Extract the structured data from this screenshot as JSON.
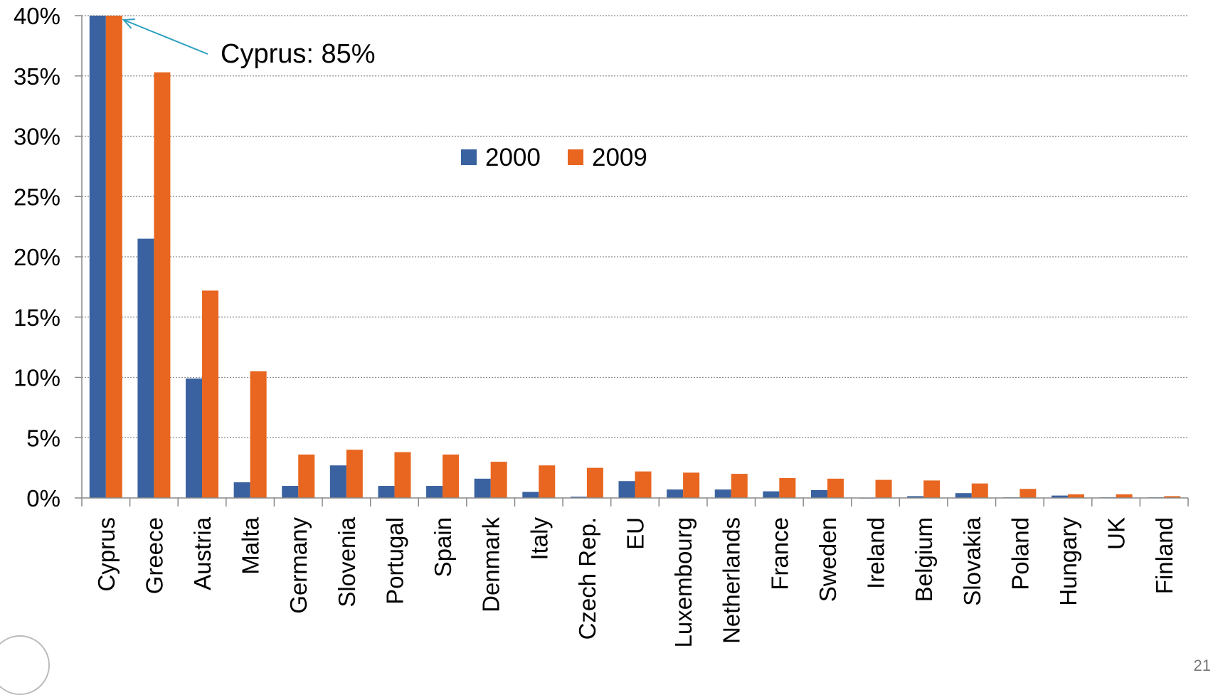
{
  "chart_data": {
    "type": "bar",
    "title": "",
    "xlabel": "",
    "ylabel": "",
    "ylim": [
      0,
      40
    ],
    "yticks": [
      "0%",
      "5%",
      "10%",
      "15%",
      "20%",
      "25%",
      "30%",
      "35%",
      "40%"
    ],
    "grid": true,
    "legend_position": "center-top",
    "categories": [
      "Cyprus",
      "Greece",
      "Austria",
      "Malta",
      "Germany",
      "Slovenia",
      "Portugal",
      "Spain",
      "Denmark",
      "Italy",
      "Czech Rep.",
      "EU",
      "Luxembourg",
      "Netherlands",
      "France",
      "Sweden",
      "Ireland",
      "Belgium",
      "Slovakia",
      "Poland",
      "Hungary",
      "UK",
      "Finland"
    ],
    "series": [
      {
        "name": "2000",
        "color": "#3a62a0",
        "values": [
          40,
          21.5,
          9.9,
          1.3,
          1.0,
          2.7,
          1.0,
          1.0,
          1.6,
          0.5,
          0.1,
          1.4,
          0.7,
          0.7,
          0.55,
          0.65,
          0.0,
          0.15,
          0.4,
          0.05,
          0.2,
          0.05,
          0.05
        ]
      },
      {
        "name": "2009",
        "color": "#e8661f",
        "values": [
          40,
          35.3,
          17.2,
          10.5,
          3.6,
          4.0,
          3.8,
          3.6,
          3.0,
          2.7,
          2.5,
          2.2,
          2.1,
          2.0,
          1.65,
          1.6,
          1.5,
          1.45,
          1.2,
          0.75,
          0.3,
          0.3,
          0.15
        ]
      }
    ],
    "annotation": {
      "text": "Cyprus: 85%",
      "category": "Cyprus",
      "arrow_color": "#2a9fbf"
    }
  },
  "page_number": "21"
}
